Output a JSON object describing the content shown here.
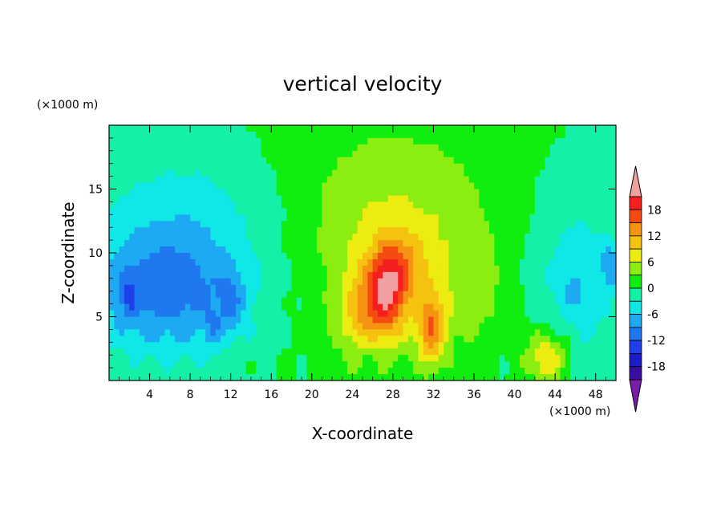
{
  "chart_data": {
    "type": "heatmap",
    "title": "vertical velocity",
    "xlabel": "X-coordinate",
    "ylabel": "Z-coordinate",
    "x_unit": "(×1000 m)",
    "y_unit": "(×1000 m)",
    "xlim": [
      0,
      50
    ],
    "ylim": [
      0,
      20
    ],
    "x_ticks": [
      "4",
      "8",
      "12",
      "16",
      "20",
      "24",
      "28",
      "32",
      "36",
      "40",
      "44",
      "48"
    ],
    "y_ticks": [
      "5",
      "10",
      "15"
    ],
    "colorbar": {
      "labels": [
        "18",
        "12",
        "6",
        "0",
        "-6",
        "-12",
        "-18"
      ],
      "levels": [
        -21,
        -18,
        -15,
        -12,
        -9,
        -6,
        -3,
        0,
        3,
        6,
        9,
        12,
        15,
        18,
        21
      ],
      "colors": [
        "#7a1ca8",
        "#3a0fa0",
        "#1c1cc9",
        "#1f3fe8",
        "#1f78ef",
        "#1eaaf2",
        "#10e8e8",
        "#14f0a8",
        "#10ee10",
        "#8cee10",
        "#ecec10",
        "#f5c210",
        "#f59410",
        "#f54a10",
        "#f51f1f",
        "#f0a0a0"
      ],
      "extend": "both"
    },
    "field_features": [
      {
        "x": 27.6,
        "z": 7.0,
        "sx": 1.5,
        "sz": 2.4,
        "amp": 15
      },
      {
        "x": 29.2,
        "z": 9.5,
        "sx": 2.0,
        "sz": 1.8,
        "amp": 4
      },
      {
        "x": 25.0,
        "z": 5.0,
        "sx": 1.7,
        "sz": 2.5,
        "amp": 8
      },
      {
        "x": 31.8,
        "z": 4.0,
        "sx": 1.0,
        "sz": 2.0,
        "amp": 12
      },
      {
        "x": 28.0,
        "z": 10.0,
        "sx": 6.5,
        "sz": 5.5,
        "amp": 4
      },
      {
        "x": 28.0,
        "z": 13.5,
        "sx": 9.0,
        "sz": 6.0,
        "amp": 3
      },
      {
        "x": 43.2,
        "z": 1.8,
        "sx": 1.5,
        "sz": 1.5,
        "amp": 10
      },
      {
        "x": 36.0,
        "z": 6.0,
        "sx": 3.0,
        "sz": 3.0,
        "amp": 2
      },
      {
        "x": 25.5,
        "z": 2.5,
        "sx": 0.8,
        "sz": 1.5,
        "amp": -2
      },
      {
        "x": 5.5,
        "z": 7.0,
        "sx": 5.5,
        "sz": 3.5,
        "amp": -9
      },
      {
        "x": 12.0,
        "z": 6.0,
        "sx": 0.9,
        "sz": 1.6,
        "amp": -5
      },
      {
        "x": 9.0,
        "z": 10.0,
        "sx": 8.0,
        "sz": 4.5,
        "amp": -3
      },
      {
        "x": 46.0,
        "z": 8.0,
        "sx": 3.5,
        "sz": 5.0,
        "amp": -5
      },
      {
        "x": 49.5,
        "z": 9.0,
        "sx": 0.7,
        "sz": 1.2,
        "amp": -6
      },
      {
        "x": 45.8,
        "z": 7.0,
        "sx": 0.5,
        "sz": 0.8,
        "amp": -4
      },
      {
        "x": 2.0,
        "z": 6.5,
        "sx": 0.6,
        "sz": 1.5,
        "amp": -4
      },
      {
        "x": 10.2,
        "z": 4.0,
        "sx": 0.6,
        "sz": 1.0,
        "amp": -4
      },
      {
        "x": 8.0,
        "z": 15.0,
        "sx": 6.0,
        "sz": 3.0,
        "amp": -2
      }
    ]
  }
}
